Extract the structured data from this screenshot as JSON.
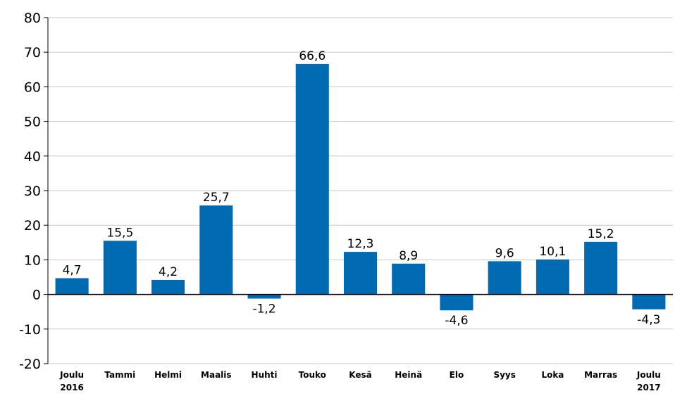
{
  "chart_data": {
    "type": "bar",
    "categories": [
      [
        "Joulu",
        "2016"
      ],
      [
        "Tammi"
      ],
      [
        "Helmi"
      ],
      [
        "Maalis"
      ],
      [
        "Huhti"
      ],
      [
        "Touko"
      ],
      [
        "Kesä"
      ],
      [
        "Heinä"
      ],
      [
        "Elo"
      ],
      [
        "Syys"
      ],
      [
        "Loka"
      ],
      [
        "Marras"
      ],
      [
        "Joulu",
        "2017"
      ]
    ],
    "values": [
      4.7,
      15.5,
      4.2,
      25.7,
      -1.2,
      66.6,
      12.3,
      8.9,
      -4.6,
      9.6,
      10.1,
      15.2,
      -4.3
    ],
    "value_labels": [
      "4,7",
      "15,5",
      "4,2",
      "25,7",
      "-1,2",
      "66,6",
      "12,3",
      "8,9",
      "-4,6",
      "9,6",
      "10,1",
      "15,2",
      "-4,3"
    ],
    "y_ticks": [
      -20,
      -10,
      0,
      10,
      20,
      30,
      40,
      50,
      60,
      70,
      80
    ],
    "ylim": [
      -20,
      80
    ],
    "grid": true,
    "bar_color": "#006ab3"
  }
}
